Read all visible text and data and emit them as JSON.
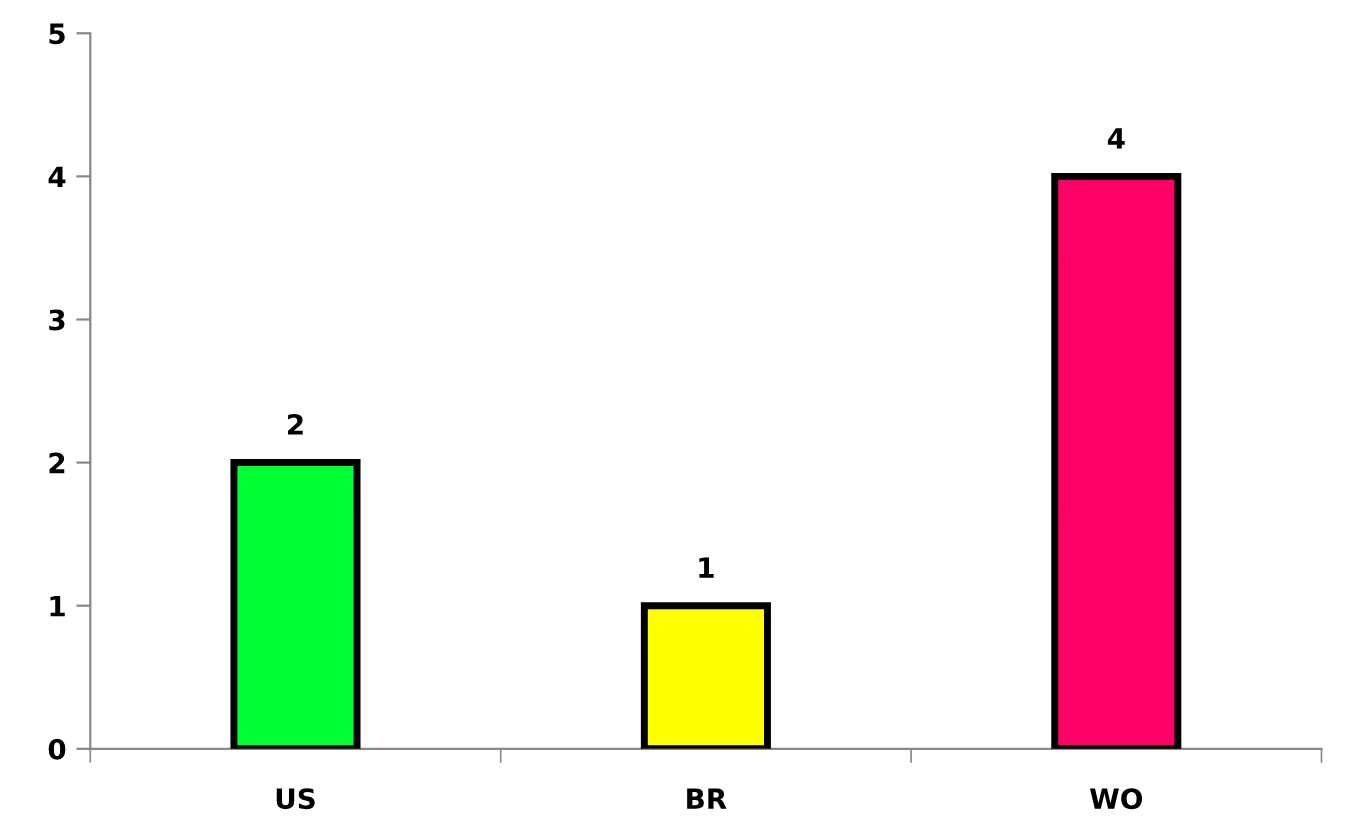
{
  "chart_data": {
    "type": "bar",
    "categories": [
      "US",
      "BR",
      "WO"
    ],
    "values": [
      2,
      1,
      4
    ],
    "colors": [
      "#00ff33",
      "#ffff00",
      "#ff0066"
    ],
    "ylim": [
      0,
      5
    ],
    "yticks": [
      0,
      1,
      2,
      3,
      4,
      5
    ],
    "grid": false,
    "data_labels": true
  }
}
